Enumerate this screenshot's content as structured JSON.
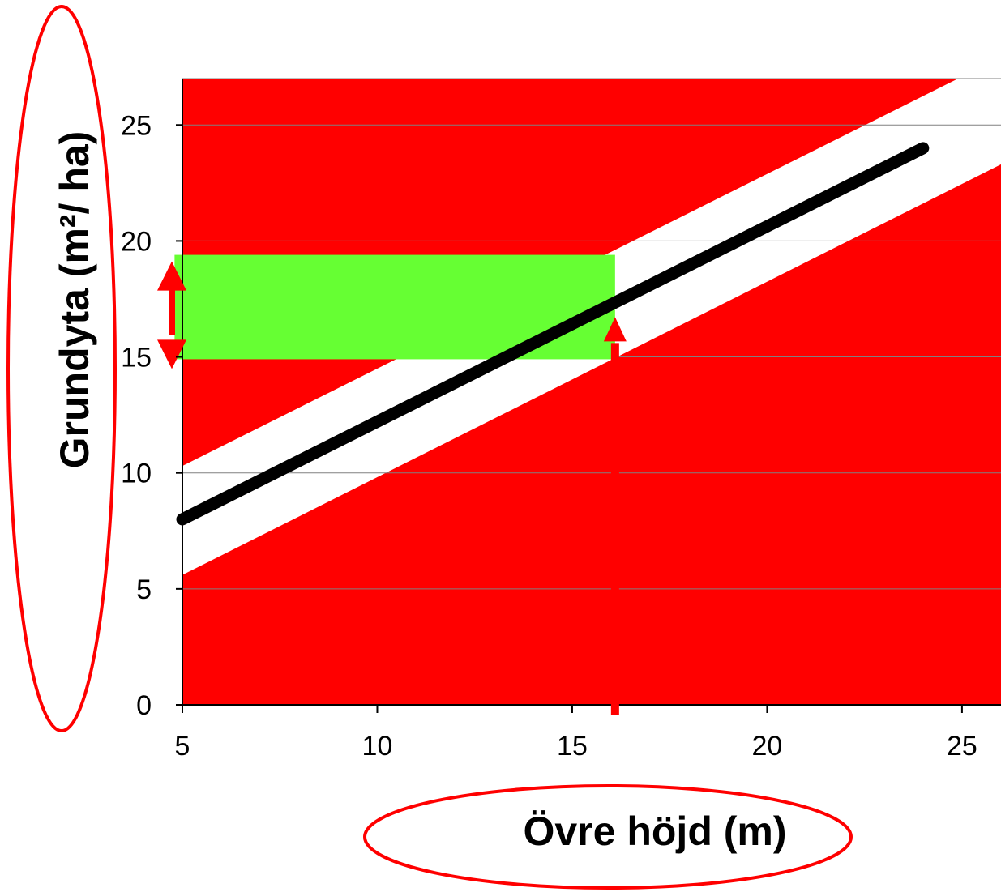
{
  "chart_data": {
    "type": "area",
    "xlabel": "Övre höjd (m)",
    "ylabel": "Grundyta (m²/ ha)",
    "xlim": [
      5,
      26
    ],
    "ylim": [
      0,
      27
    ],
    "x_ticks": [
      "5",
      "10",
      "15",
      "20",
      "25"
    ],
    "y_ticks": [
      "0",
      "5",
      "10",
      "15",
      "20",
      "25"
    ],
    "grid": "horizontal",
    "series": [
      {
        "values": [
          [
            5,
            8.0
          ],
          [
            24,
            24.0
          ]
        ],
        "color": "#000000"
      }
    ],
    "band_upper": [
      [
        5,
        10.3
      ],
      [
        24.9,
        27
      ]
    ],
    "band_lower": [
      [
        5,
        5.6
      ],
      [
        26,
        23.3
      ]
    ],
    "highlight_range": {
      "x": [
        4.8,
        16.1
      ],
      "y": [
        14.9,
        19.4
      ],
      "color": "#66ff33"
    },
    "marker_x": 16.1,
    "colors": {
      "band_outside": "#ff0000",
      "highlight": "#66ff33",
      "line": "#000000",
      "ellipse": "#ff0000"
    }
  }
}
